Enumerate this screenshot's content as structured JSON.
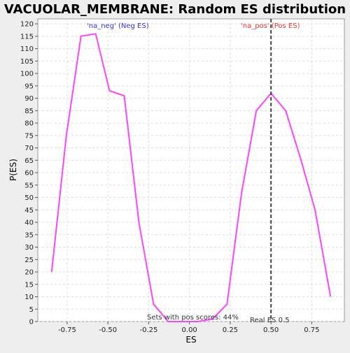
{
  "chart_data": {
    "type": "line",
    "title": "VACUOLAR_MEMBRANE: Random ES distribution",
    "xlabel": "ES",
    "ylabel": "P(ES)",
    "xlim": [
      -0.93,
      0.95
    ],
    "ylim": [
      0,
      122
    ],
    "x_ticks": [
      -0.75,
      -0.5,
      -0.25,
      0.0,
      0.25,
      0.5,
      0.75
    ],
    "x_tick_labels": [
      "-0.75",
      "-0.50",
      "-0.25",
      "0.00",
      "0.25",
      "0.50",
      "0.75"
    ],
    "y_ticks": [
      0,
      5,
      10,
      15,
      20,
      25,
      30,
      35,
      40,
      45,
      50,
      55,
      60,
      65,
      70,
      75,
      80,
      85,
      90,
      95,
      100,
      105,
      110,
      115,
      120
    ],
    "y_tick_labels": [
      "0",
      "5",
      "10",
      "15",
      "20",
      "25",
      "30",
      "35",
      "40",
      "45",
      "50",
      "55",
      "60",
      "65",
      "70",
      "75",
      "80",
      "85",
      "90",
      "95",
      "100",
      "105",
      "110",
      "115",
      "120"
    ],
    "grid": true,
    "series": [
      {
        "color": "#ff44ff",
        "x": [
          -0.845,
          -0.755,
          -0.665,
          -0.575,
          -0.49,
          -0.4,
          -0.31,
          -0.22,
          -0.13,
          -0.04,
          0.05,
          0.14,
          0.23,
          0.32,
          0.41,
          0.5,
          0.59,
          0.68,
          0.77,
          0.865
        ],
        "values": [
          20,
          75,
          115,
          116,
          93,
          91,
          40,
          7,
          0,
          0,
          0,
          1,
          7,
          52,
          85,
          92,
          85,
          66,
          45,
          10
        ]
      }
    ],
    "real_es": {
      "x": 0.5,
      "color": "#444444"
    },
    "annotations": {
      "neg_label": "'na_neg' (Neg ES)",
      "neg_color": "#3333ee",
      "pos_label": "'na_pos' (Pos ES)",
      "pos_color": "#ee3333",
      "sets_text": "Sets with pos scores: 44%",
      "real_es_text": "Real ES 0.5"
    }
  }
}
